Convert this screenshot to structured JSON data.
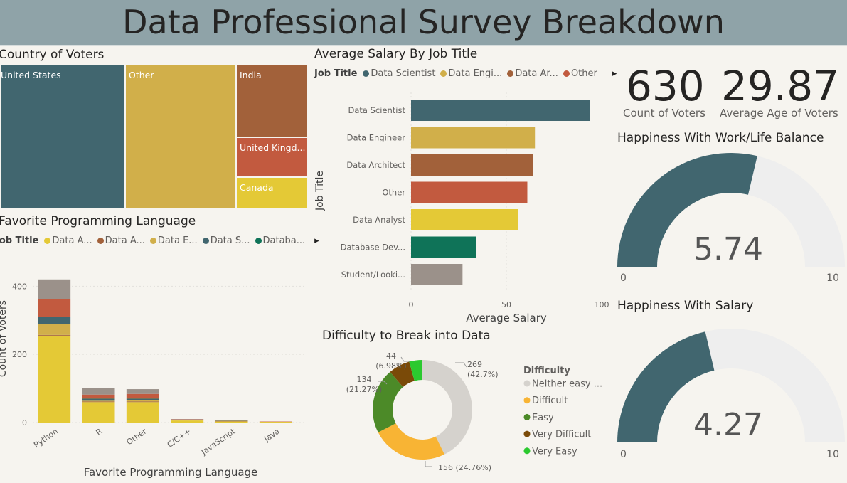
{
  "title": "Data Professional Survey Breakdown",
  "kpis": [
    {
      "value": "630",
      "label": "Count of Voters"
    },
    {
      "value": "29.87",
      "label": "Average Age of Voters"
    }
  ],
  "colors": {
    "header": "#8fa3a8",
    "background": "#f6f4ef",
    "teal": "#41666f",
    "gold": "#d1af4a",
    "brown": "#a2613a",
    "red": "#c25a3f",
    "yellow": "#e4c936",
    "green": "#0f7358",
    "gray": "#9b918a",
    "gauge_track": "#eeeeee"
  },
  "treemap": {
    "title": "Country of Voters",
    "items": [
      {
        "name": "United States",
        "color": "#41666f"
      },
      {
        "name": "Other",
        "color": "#d1af4a"
      },
      {
        "name": "India",
        "color": "#a2613a"
      },
      {
        "name": "United Kingd...",
        "color": "#c25a3f"
      },
      {
        "name": "Canada",
        "color": "#e4c936"
      }
    ]
  },
  "salary_chart": {
    "title": "Average Salary By Job Title",
    "legend_title": "Job Title",
    "legend": [
      {
        "name": "Data Scientist",
        "color": "#41666f"
      },
      {
        "name": "Data Engi...",
        "color": "#d1af4a"
      },
      {
        "name": "Data Ar...",
        "color": "#a2613a"
      },
      {
        "name": "Other",
        "color": "#c25a3f"
      }
    ],
    "more_icon": "▸"
  },
  "language_chart": {
    "title": "Favorite Programming Language",
    "legend_title": "Job Title",
    "legend": [
      {
        "name": "Data A...",
        "color": "#e4c936"
      },
      {
        "name": "Data A...",
        "color": "#a2613a"
      },
      {
        "name": "Data E...",
        "color": "#d1af4a"
      },
      {
        "name": "Data S...",
        "color": "#41666f"
      },
      {
        "name": "Databa...",
        "color": "#0f7358"
      }
    ],
    "more_icon": "▸"
  },
  "difficulty_chart": {
    "title": "Difficulty to Break into Data",
    "legend_title": "Difficulty"
  },
  "gauges": [
    {
      "title": "Happiness With Work/Life Balance",
      "value": 5.74,
      "value_label": "5.74",
      "min_label": "0",
      "max_label": "10",
      "min": 0,
      "max": 10
    },
    {
      "title": "Happiness With Salary",
      "value": 4.27,
      "value_label": "4.27",
      "min_label": "0",
      "max_label": "10",
      "min": 0,
      "max": 10
    }
  ],
  "chart_data": [
    {
      "type": "bar",
      "orientation": "horizontal",
      "title": "Average Salary By Job Title",
      "xlabel": "Average Salary",
      "ylabel": "Job Title",
      "categories": [
        "Data Scientist",
        "Data Engineer",
        "Data Architect",
        "Other",
        "Data Analyst",
        "Database Dev...",
        "Student/Looki..."
      ],
      "values": [
        94,
        65,
        64,
        61,
        56,
        34,
        27
      ],
      "colors": [
        "#41666f",
        "#d1af4a",
        "#a2613a",
        "#c25a3f",
        "#e4c936",
        "#0f7358",
        "#9b918a"
      ],
      "xlim": [
        0,
        100
      ],
      "xticks": [
        "0",
        "50",
        "100"
      ]
    },
    {
      "type": "bar",
      "stacked": true,
      "title": "Favorite Programming Language",
      "xlabel": "Favorite Programming Language",
      "ylabel": "Count of Voters",
      "categories": [
        "Python",
        "R",
        "Other",
        "C/C++",
        "JavaScript",
        "Java"
      ],
      "series": [
        {
          "color": "#e4c936",
          "values": [
            255,
            60,
            60,
            6,
            3,
            2
          ]
        },
        {
          "color": "#a2613a",
          "values": [
            2,
            2,
            2,
            0,
            1,
            0
          ]
        },
        {
          "color": "#d1af4a",
          "values": [
            32,
            2,
            3,
            2,
            1,
            0
          ]
        },
        {
          "color": "#41666f",
          "values": [
            20,
            5,
            4,
            1,
            1,
            0
          ]
        },
        {
          "color": "#0f7358",
          "values": [
            0,
            1,
            1,
            0,
            0,
            0
          ]
        },
        {
          "color": "#c25a3f",
          "values": [
            53,
            12,
            14,
            1,
            1,
            1
          ]
        },
        {
          "color": "#9b918a",
          "values": [
            58,
            20,
            14,
            0,
            1,
            0
          ]
        }
      ],
      "ylim": [
        0,
        430
      ],
      "yticks": [
        "0",
        "200",
        "400"
      ]
    },
    {
      "type": "pie",
      "donut": true,
      "title": "Difficulty to Break into Data",
      "legend_title": "Difficulty",
      "slices": [
        {
          "name": "Neither easy ...",
          "value": 269,
          "label_value": "269",
          "label_pct": "(42.7%)",
          "color": "#d5d2cd"
        },
        {
          "name": "Difficult",
          "value": 156,
          "label_value": "156 (24.76%)",
          "label_pct": "",
          "color": "#f8b434"
        },
        {
          "name": "Easy",
          "value": 134,
          "label_value": "134",
          "label_pct": "(21.27%)",
          "color": "#4c8a28"
        },
        {
          "name": "Very Difficult",
          "value": 44,
          "label_value": "44",
          "label_pct": "(6.98%)",
          "color": "#7a4a08"
        },
        {
          "name": "Very Easy",
          "value": 27,
          "label_value": "",
          "label_pct": "",
          "color": "#2bc92f"
        }
      ]
    }
  ]
}
